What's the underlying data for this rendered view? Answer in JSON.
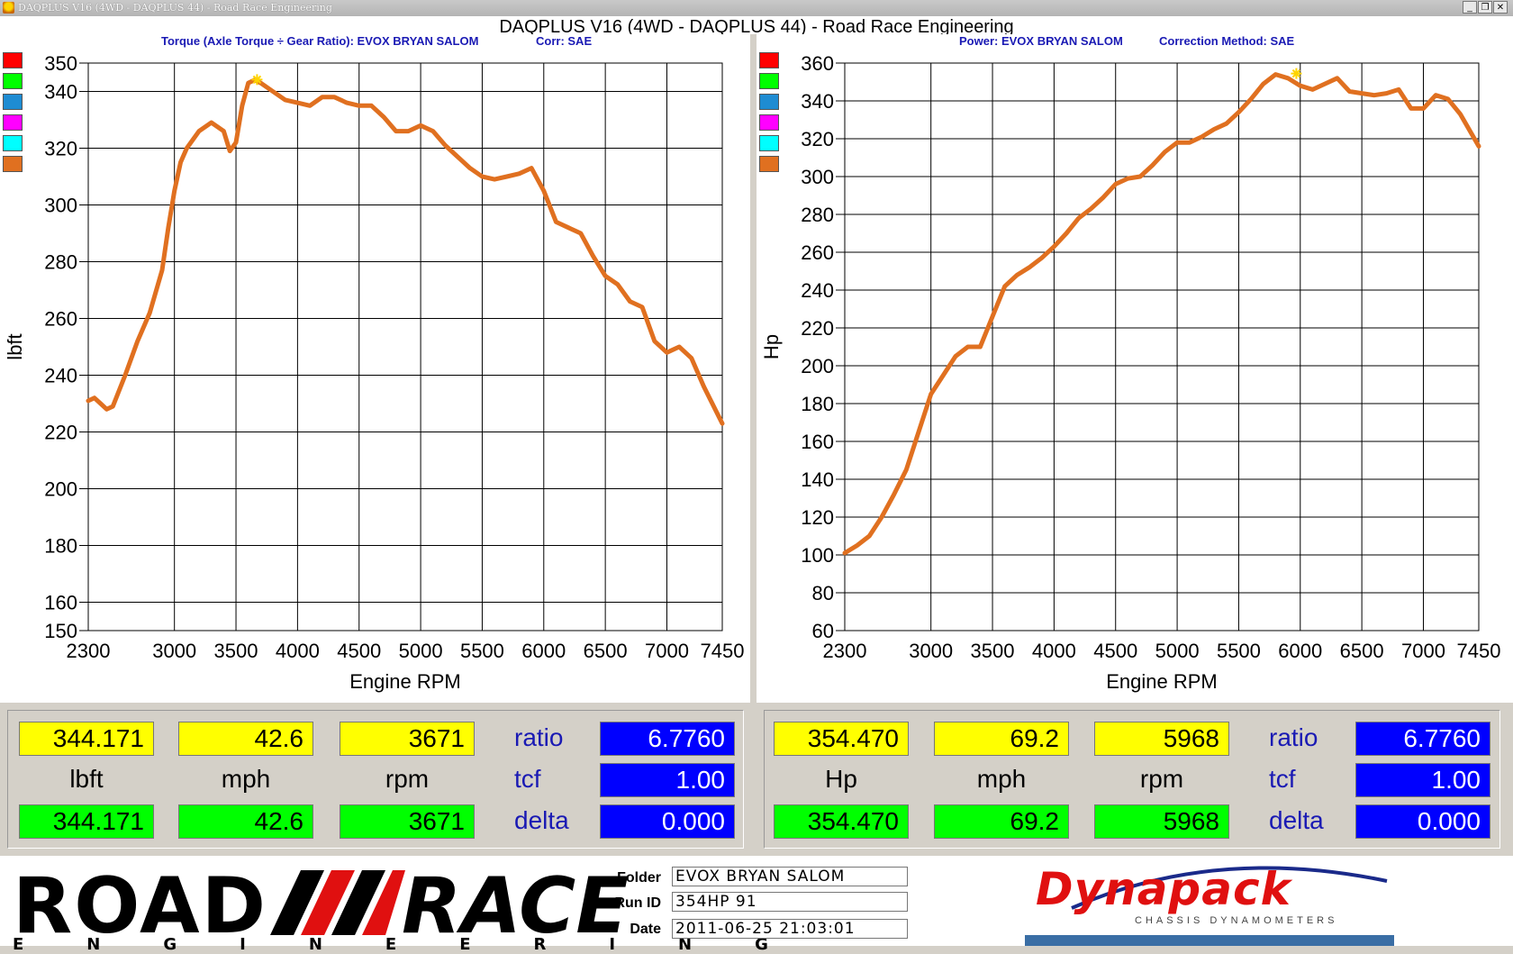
{
  "window": {
    "titlebar_text": "DAQPLUS V16 (4WD - DAQPLUS 44) - Road Race Engineering",
    "main_title": "DAQPLUS V16 (4WD - DAQPLUS 44) - Road Race Engineering"
  },
  "colors": {
    "curve": "#e07020",
    "swatches": [
      "#ff0000",
      "#00ff00",
      "#1e8cd2",
      "#ff00ff",
      "#00ffff",
      "#e07020"
    ],
    "subtitle": "#1a1ab4"
  },
  "left_panel": {
    "subtitle_main": "Torque (Axle Torque ÷ Gear Ratio): EVOX BRYAN SALOM",
    "subtitle_corr": "Corr: SAE",
    "readout": {
      "top": [
        "344.171",
        "42.6",
        "3671"
      ],
      "units": [
        "lbft",
        "mph",
        "rpm"
      ],
      "bottom": [
        "344.171",
        "42.6",
        "3671"
      ],
      "labels": [
        "ratio",
        "tcf",
        "delta"
      ],
      "blue": [
        "6.7760",
        "1.00",
        "0.000"
      ]
    }
  },
  "right_panel": {
    "subtitle_main": "Power: EVOX BRYAN SALOM",
    "subtitle_corr": "Correction Method: SAE",
    "readout": {
      "top": [
        "354.470",
        "69.2",
        "5968"
      ],
      "units": [
        "Hp",
        "mph",
        "rpm"
      ],
      "bottom": [
        "354.470",
        "69.2",
        "5968"
      ],
      "labels": [
        "ratio",
        "tcf",
        "delta"
      ],
      "blue": [
        "6.7760",
        "1.00",
        "0.000"
      ]
    }
  },
  "chart_data": [
    {
      "type": "line",
      "xlabel": "Engine RPM",
      "ylabel": "lbft",
      "xlim": [
        2300,
        7450
      ],
      "ylim": [
        150,
        350
      ],
      "x_ticks": [
        2300,
        3000,
        3500,
        4000,
        4500,
        5000,
        5500,
        6000,
        6500,
        7000,
        7450
      ],
      "y_ticks": [
        150,
        160,
        180,
        200,
        220,
        240,
        260,
        280,
        300,
        320,
        340,
        350
      ],
      "grid": true,
      "peak_marker": {
        "x": 3671,
        "y": 344.171
      },
      "series": [
        {
          "x": [
            2300,
            2350,
            2400,
            2450,
            2500,
            2600,
            2700,
            2800,
            2900,
            2950,
            3000,
            3050,
            3100,
            3200,
            3300,
            3400,
            3450,
            3500,
            3550,
            3600,
            3650,
            3700,
            3800,
            3900,
            4000,
            4100,
            4200,
            4300,
            4400,
            4500,
            4600,
            4700,
            4800,
            4900,
            5000,
            5100,
            5200,
            5300,
            5400,
            5500,
            5600,
            5700,
            5800,
            5900,
            6000,
            6100,
            6200,
            6300,
            6400,
            6500,
            6600,
            6700,
            6800,
            6900,
            7000,
            7100,
            7200,
            7300,
            7450
          ],
          "y": [
            231,
            232,
            230,
            228,
            229,
            240,
            252,
            262,
            277,
            292,
            305,
            315,
            320,
            326,
            329,
            326,
            319,
            322,
            335,
            343,
            344,
            343,
            340,
            337,
            336,
            335,
            338,
            338,
            336,
            335,
            335,
            331,
            326,
            326,
            328,
            326,
            321,
            317,
            313,
            310,
            309,
            310,
            311,
            313,
            305,
            294,
            292,
            290,
            282,
            275,
            272,
            266,
            264,
            252,
            248,
            250,
            246,
            236,
            223
          ]
        }
      ]
    },
    {
      "type": "line",
      "xlabel": "Engine RPM",
      "ylabel": "Hp",
      "xlim": [
        2300,
        7450
      ],
      "ylim": [
        60,
        360
      ],
      "x_ticks": [
        2300,
        3000,
        3500,
        4000,
        4500,
        5000,
        5500,
        6000,
        6500,
        7000,
        7450
      ],
      "y_ticks": [
        60,
        80,
        100,
        120,
        140,
        160,
        180,
        200,
        220,
        240,
        260,
        280,
        300,
        320,
        340,
        360
      ],
      "grid": true,
      "peak_marker": {
        "x": 5968,
        "y": 354.47
      },
      "series": [
        {
          "x": [
            2300,
            2400,
            2500,
            2600,
            2700,
            2800,
            2900,
            3000,
            3100,
            3200,
            3300,
            3400,
            3500,
            3600,
            3700,
            3800,
            3900,
            4000,
            4100,
            4200,
            4300,
            4400,
            4500,
            4600,
            4700,
            4800,
            4900,
            5000,
            5100,
            5200,
            5300,
            5400,
            5500,
            5600,
            5700,
            5800,
            5900,
            6000,
            6100,
            6200,
            6300,
            6400,
            6500,
            6600,
            6700,
            6800,
            6900,
            7000,
            7100,
            7200,
            7300,
            7450
          ],
          "y": [
            101,
            105,
            110,
            120,
            132,
            145,
            165,
            185,
            195,
            205,
            210,
            210,
            226,
            242,
            248,
            252,
            257,
            263,
            270,
            278,
            283,
            289,
            296,
            299,
            300,
            306,
            313,
            318,
            318,
            321,
            325,
            328,
            334,
            341,
            349,
            354,
            352,
            348,
            346,
            349,
            352,
            345,
            344,
            343,
            344,
            346,
            336,
            336,
            343,
            341,
            333,
            316
          ]
        }
      ]
    }
  ],
  "footer": {
    "logo_road": "ROAD",
    "logo_race": "RACE",
    "logo_eng": "ENGINEERING",
    "folder_label": "Folder",
    "folder_value": "EVOX BRYAN SALOM",
    "runid_label": "Run ID",
    "runid_value": "354HP 91",
    "date_label": "Date",
    "date_value": "2011-06-25 21:03:01",
    "brand": "Dynapack",
    "brand_sub": "CHASSIS DYNAMOMETERS"
  }
}
